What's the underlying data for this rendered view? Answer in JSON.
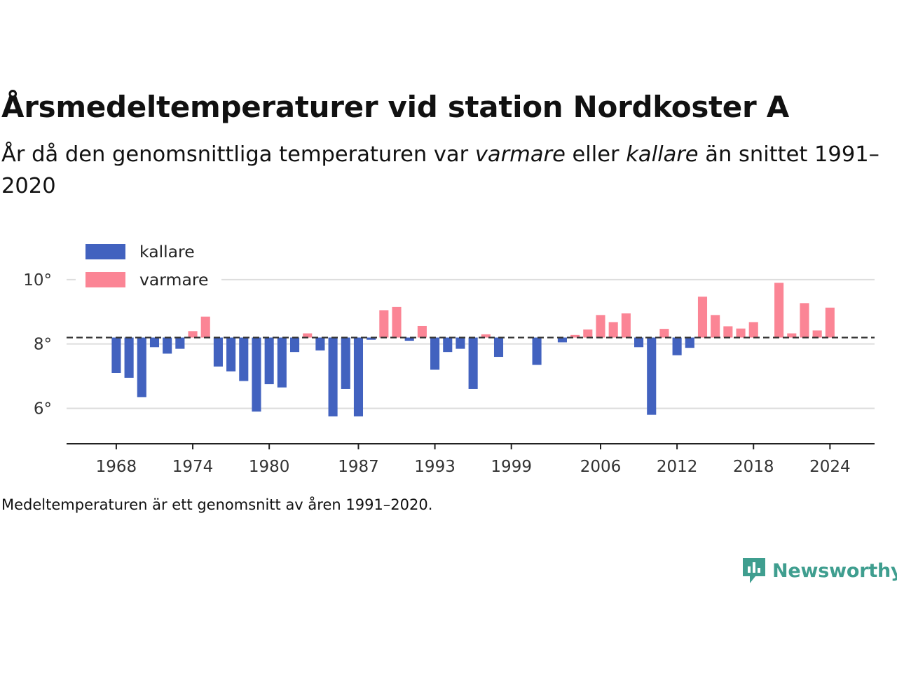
{
  "title": "Årsmedeltemperaturer vid station Nordkoster A",
  "subtitle": {
    "part1": "År då den genomsnittliga temperaturen var ",
    "em1": "varmare",
    "part2": " eller ",
    "em2": "kallare",
    "part3": " än snittet 1991–2020"
  },
  "footnote": "Medeltemperaturen är ett genomsnitt av åren 1991–2020.",
  "brand": "Newsworthy",
  "colors": {
    "kallare": "#4262bf",
    "varmare": "#fb8595",
    "baseline": "#333333",
    "grid": "#dddddd",
    "brand": "#3f9e8f"
  },
  "chart_data": {
    "type": "bar",
    "baseline": 8.2,
    "ylim": [
      4.9,
      11.5
    ],
    "yticks": [
      6,
      8,
      10
    ],
    "ytick_labels": [
      "6°",
      "8°",
      "10°"
    ],
    "xticks": [
      1968,
      1974,
      1980,
      1987,
      1993,
      1999,
      2006,
      2012,
      2018,
      2024
    ],
    "xtick_labels": [
      "1968",
      "1974",
      "1980",
      "1987",
      "1993",
      "1999",
      "2006",
      "2012",
      "2018",
      "2024"
    ],
    "xlim": [
      1964.1,
      2027.5
    ],
    "grid": true,
    "legend_position": "top-left",
    "legend": [
      {
        "key": "kallare",
        "label": "kallare"
      },
      {
        "key": "varmare",
        "label": "varmare"
      }
    ],
    "years": [
      1968,
      1969,
      1970,
      1971,
      1972,
      1973,
      1974,
      1975,
      1976,
      1977,
      1978,
      1979,
      1980,
      1981,
      1982,
      1983,
      1984,
      1985,
      1986,
      1987,
      1988,
      1989,
      1990,
      1991,
      1992,
      1993,
      1994,
      1995,
      1996,
      1997,
      1998,
      2001,
      2003,
      2004,
      2005,
      2006,
      2007,
      2008,
      2009,
      2010,
      2011,
      2012,
      2013,
      2014,
      2015,
      2016,
      2017,
      2018,
      2020,
      2021,
      2022,
      2023,
      2024
    ],
    "values": [
      7.1,
      6.95,
      6.35,
      7.9,
      7.7,
      7.85,
      8.4,
      8.85,
      7.3,
      7.15,
      6.85,
      5.9,
      6.75,
      6.65,
      7.75,
      8.33,
      7.8,
      5.75,
      6.6,
      5.75,
      8.13,
      9.05,
      9.15,
      8.1,
      8.56,
      7.2,
      7.75,
      7.85,
      6.6,
      8.3,
      7.6,
      7.35,
      8.05,
      8.28,
      8.45,
      8.9,
      8.68,
      8.95,
      7.9,
      5.8,
      8.47,
      7.65,
      7.88,
      9.47,
      8.9,
      8.55,
      8.48,
      8.68,
      9.9,
      8.33,
      9.27,
      8.42,
      9.13
    ]
  }
}
